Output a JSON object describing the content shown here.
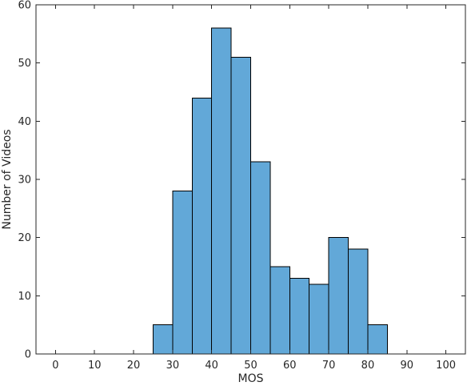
{
  "chart_data": {
    "type": "bar",
    "subtype": "histogram",
    "xlabel": "MOS",
    "ylabel": "Number of Videos",
    "xlim": [
      -5,
      105
    ],
    "ylim": [
      0,
      60
    ],
    "bin_width": 5,
    "x_ticks": [
      0,
      10,
      20,
      30,
      40,
      50,
      60,
      70,
      80,
      90,
      100
    ],
    "y_ticks": [
      0,
      10,
      20,
      30,
      40,
      50,
      60
    ],
    "bins": [
      {
        "start": 25,
        "end": 30,
        "count": 5
      },
      {
        "start": 30,
        "end": 35,
        "count": 28
      },
      {
        "start": 35,
        "end": 40,
        "count": 44
      },
      {
        "start": 40,
        "end": 45,
        "count": 56
      },
      {
        "start": 45,
        "end": 50,
        "count": 51
      },
      {
        "start": 50,
        "end": 55,
        "count": 33
      },
      {
        "start": 55,
        "end": 60,
        "count": 15
      },
      {
        "start": 60,
        "end": 65,
        "count": 13
      },
      {
        "start": 65,
        "end": 70,
        "count": 12
      },
      {
        "start": 70,
        "end": 75,
        "count": 20
      },
      {
        "start": 75,
        "end": 80,
        "count": 18
      },
      {
        "start": 80,
        "end": 85,
        "count": 5
      }
    ],
    "bar_color": "#62a8d8",
    "edge_color": "#000000",
    "grid": false,
    "legend": "none"
  }
}
